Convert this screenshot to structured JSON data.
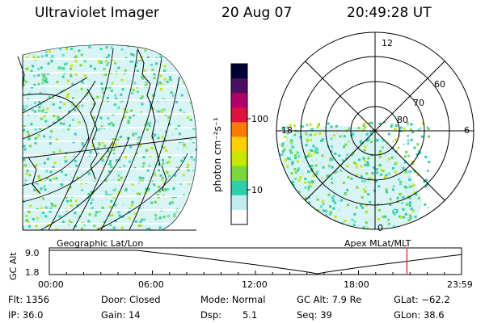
{
  "header": {
    "instrument": "Ultraviolet Imager",
    "date": "20 Aug 07",
    "time": "20:49:28 UT"
  },
  "geo_panel": {
    "label": "Geographic Lat/Lon"
  },
  "polar_panel": {
    "label": "Apex MLat/MLT",
    "mlt_labels": {
      "top": "12",
      "left": "18",
      "right": "6",
      "bottom": "0"
    },
    "lat_labels": [
      "60",
      "70",
      "80"
    ]
  },
  "colorbar": {
    "unit_label": "photon cm⁻²s⁻¹",
    "scale": "log",
    "ticks": [
      "100",
      "10"
    ],
    "colors": [
      "#000033",
      "#4d1060",
      "#b0006a",
      "#e0103a",
      "#ff7a00",
      "#ffd000",
      "#c8e800",
      "#7ad83c",
      "#2ed0a8",
      "#bfeef0",
      "#ffffff"
    ]
  },
  "altitude_plot": {
    "ylabel": "GC Alt",
    "ymax": "9.0",
    "ymin": "1.8",
    "xticks": [
      "00:00",
      "06:00",
      "12:00",
      "18:00",
      "23:59"
    ],
    "current_marker_hours": 20.82,
    "marker_color": "#e02020"
  },
  "status": {
    "flt": "Flt: 1356",
    "ip": "IP: 36.0",
    "door": "Door: Closed",
    "gain": "Gain: 14",
    "mode": "Mode: Normal",
    "dsp_label": "Dsp:",
    "dsp_value": "5.1",
    "gc_alt": "GC Alt: 7.9 Re",
    "seq": "Seq: 39",
    "glat": "GLat: −62.2",
    "glon": "GLon: 38.6"
  }
}
